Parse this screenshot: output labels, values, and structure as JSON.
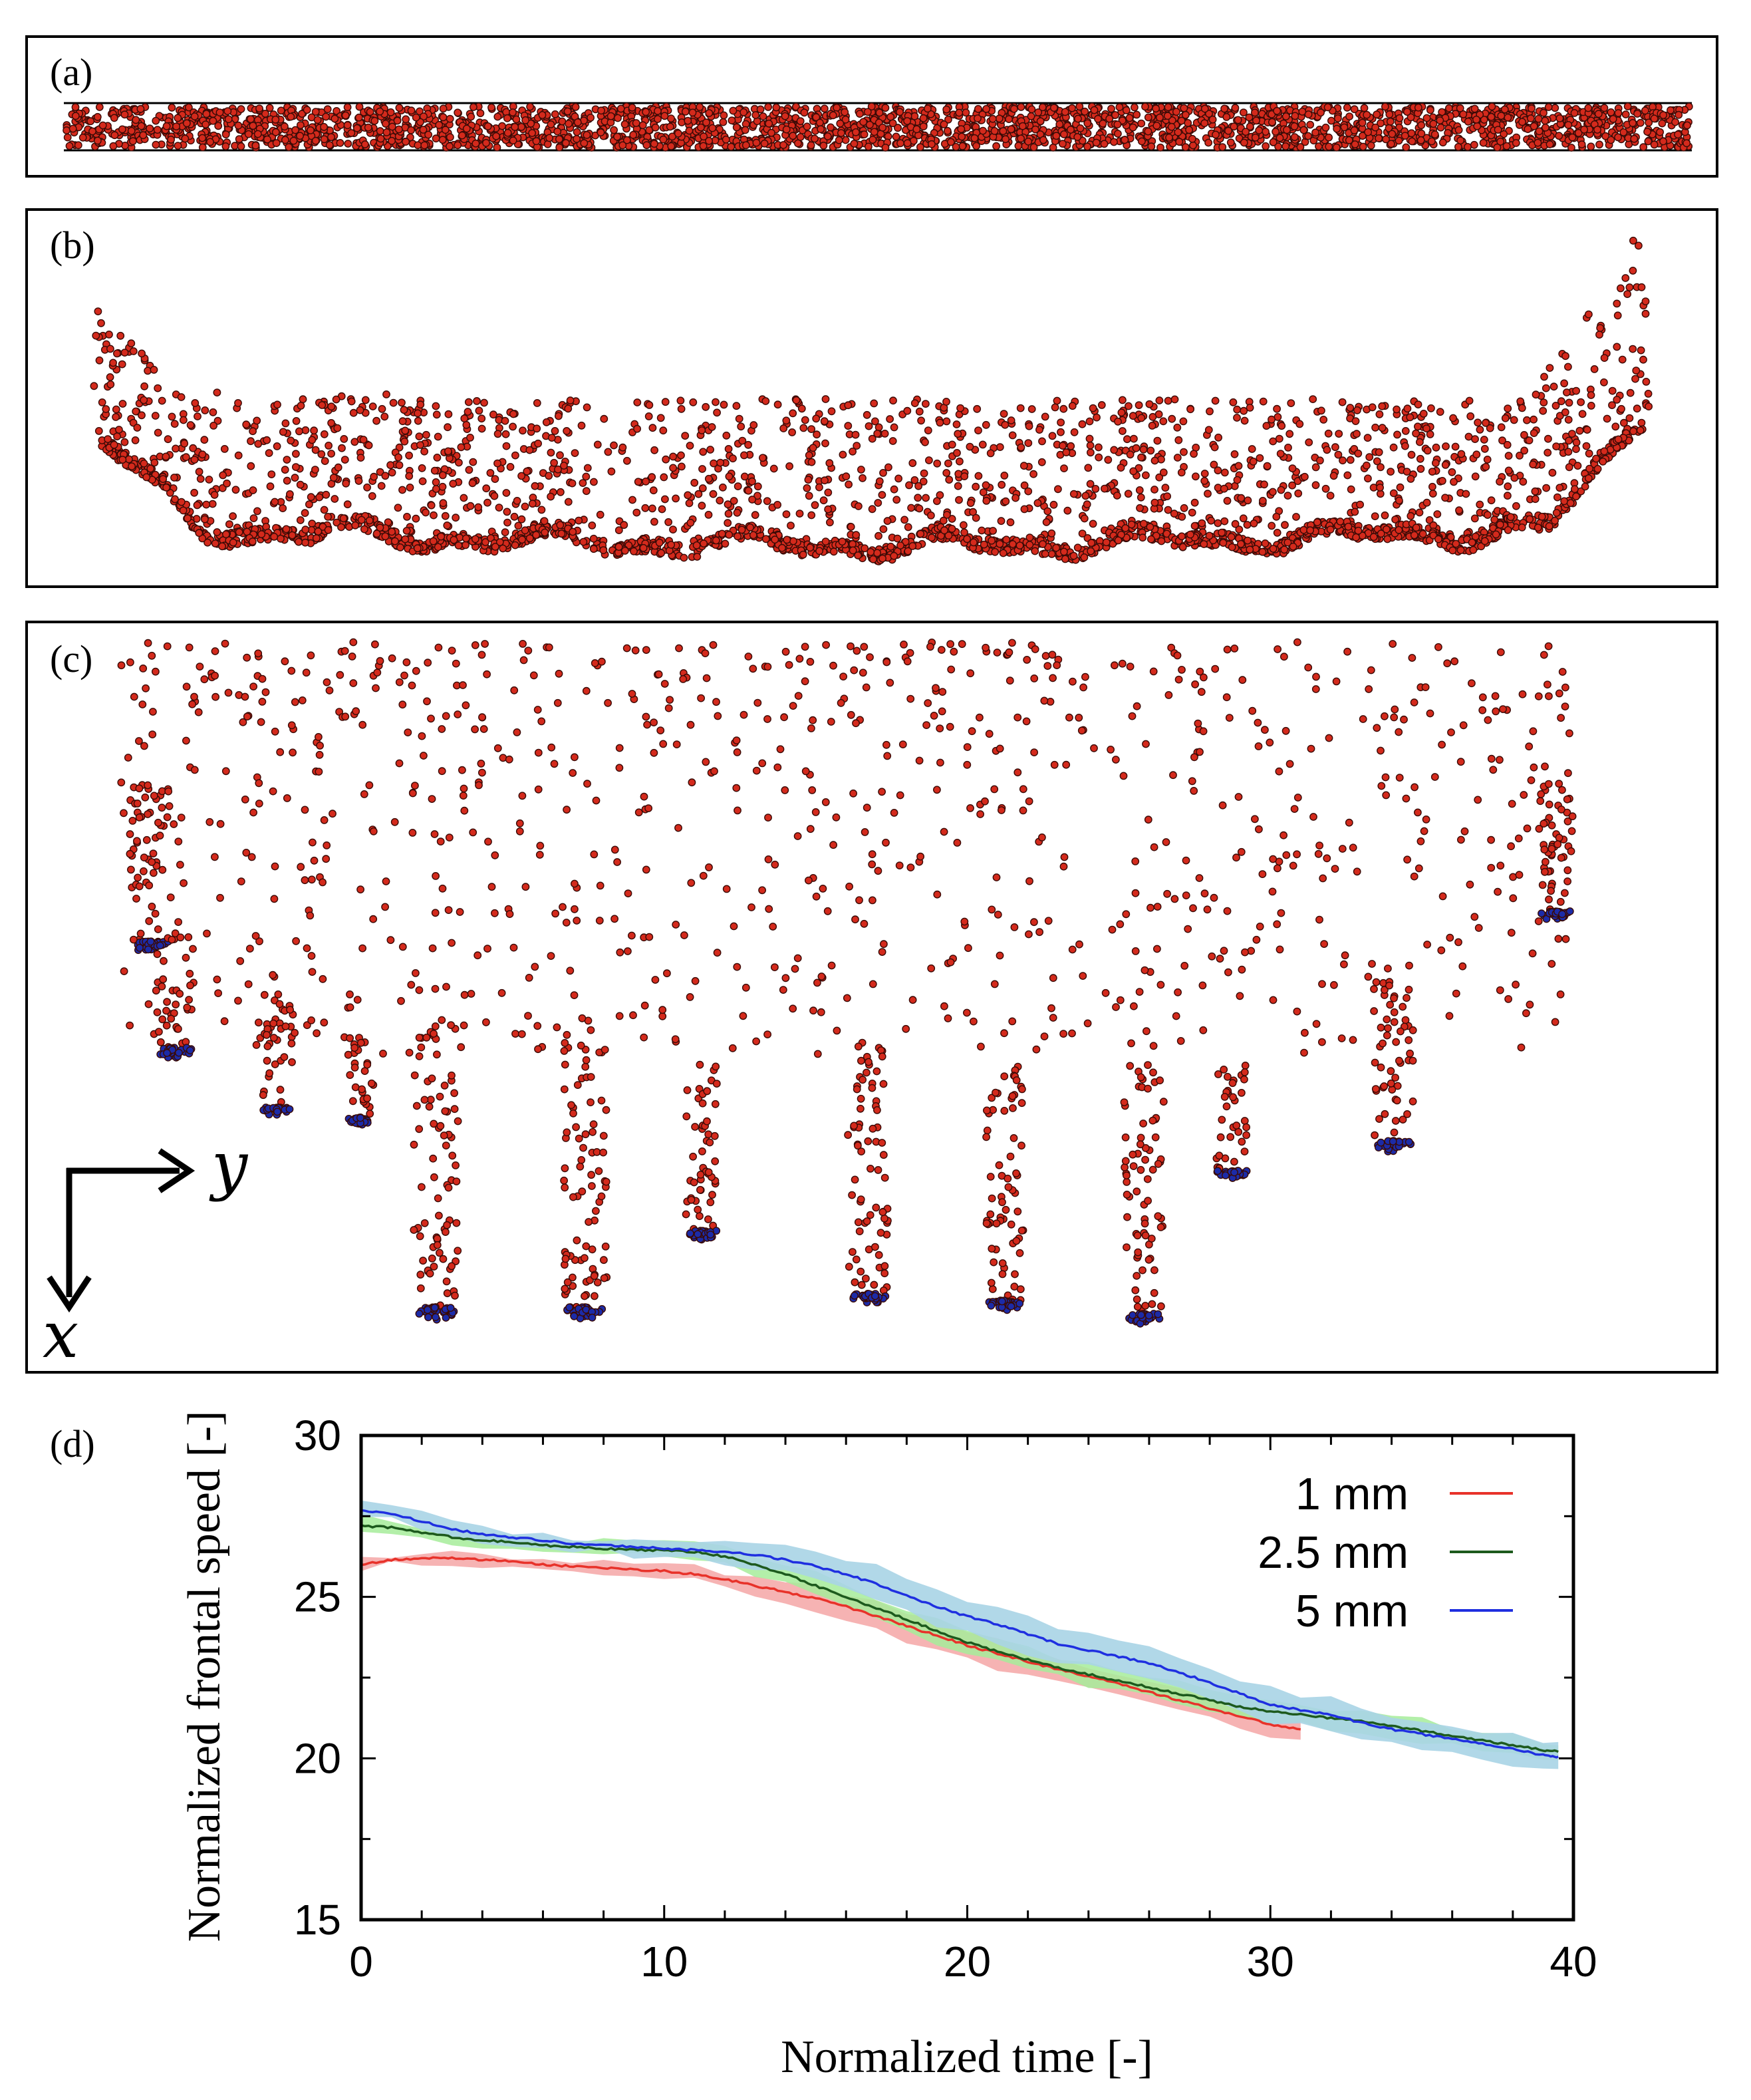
{
  "panels": {
    "a": {
      "label": "(a)",
      "description_colors": {
        "particle": "#d42a1c"
      }
    },
    "b": {
      "label": "(b)"
    },
    "c": {
      "label": "(c)",
      "colors": {
        "particle": "#d42a1c",
        "tip": "#1c2ba8"
      }
    },
    "d": {
      "label": "(d)"
    }
  },
  "axes_indicator": {
    "x_label": "x",
    "y_label": "y"
  },
  "colors": {
    "particle": "#d42a1c",
    "tip_particle": "#1c2ba8",
    "frame": "#000000"
  },
  "chart_data": {
    "type": "line",
    "title": "",
    "xlabel": "Normalized time [-]",
    "ylabel": "Normalized frontal speed [-]",
    "xlim": [
      0,
      40
    ],
    "ylim": [
      15,
      30
    ],
    "xticks": [
      "0",
      "10",
      "20",
      "30",
      "40"
    ],
    "yticks": [
      "15",
      "20",
      "25",
      "30"
    ],
    "legend_position": "top-right",
    "series": [
      {
        "name": "1 mm",
        "color": "#e8322a",
        "band_color": "#f4a6a6",
        "x": [
          0,
          1,
          2,
          3,
          4,
          5,
          6,
          7,
          8,
          9,
          10,
          11,
          12,
          13,
          14,
          15,
          16,
          17,
          18,
          19,
          20,
          21,
          22,
          23,
          24,
          25,
          26,
          27,
          28,
          29,
          30,
          31
        ],
        "y": [
          26.0,
          26.15,
          26.2,
          26.2,
          26.15,
          26.1,
          26.0,
          25.95,
          25.9,
          25.85,
          25.8,
          25.7,
          25.55,
          25.35,
          25.15,
          24.95,
          24.7,
          24.4,
          24.1,
          23.8,
          23.5,
          23.25,
          23.0,
          22.75,
          22.55,
          22.3,
          22.05,
          21.8,
          21.55,
          21.3,
          21.05,
          20.9
        ],
        "band": [
          0.15,
          0.15,
          0.15,
          0.15,
          0.15,
          0.15,
          0.15,
          0.15,
          0.15,
          0.15,
          0.2,
          0.2,
          0.2,
          0.25,
          0.3,
          0.35,
          0.4,
          0.4,
          0.45,
          0.45,
          0.45,
          0.45,
          0.4,
          0.35,
          0.35,
          0.3,
          0.3,
          0.3,
          0.3,
          0.3,
          0.3,
          0.3
        ]
      },
      {
        "name": "2.5 mm",
        "color": "#1d5a1d",
        "band_color": "#a6ec9a",
        "x": [
          0,
          1,
          2,
          3,
          4,
          5,
          6,
          7,
          8,
          9,
          10,
          11,
          12,
          13,
          14,
          15,
          16,
          17,
          18,
          19,
          20,
          21,
          22,
          23,
          24,
          25,
          26,
          27,
          28,
          29,
          30,
          31,
          32,
          33,
          34,
          35,
          36,
          37,
          38,
          39,
          39.5
        ],
        "y": [
          27.2,
          27.15,
          27.0,
          26.85,
          26.75,
          26.7,
          26.6,
          26.55,
          26.5,
          26.45,
          26.45,
          26.4,
          26.25,
          26.0,
          25.7,
          25.35,
          25.0,
          24.65,
          24.3,
          23.95,
          23.6,
          23.3,
          23.05,
          22.8,
          22.6,
          22.4,
          22.2,
          22.0,
          21.8,
          21.6,
          21.45,
          21.35,
          21.25,
          21.15,
          21.0,
          20.85,
          20.7,
          20.55,
          20.4,
          20.25,
          20.2
        ],
        "band": [
          0.25,
          0.2,
          0.2,
          0.2,
          0.2,
          0.2,
          0.2,
          0.2,
          0.2,
          0.2,
          0.2,
          0.25,
          0.25,
          0.3,
          0.3,
          0.35,
          0.35,
          0.35,
          0.35,
          0.35,
          0.35,
          0.35,
          0.3,
          0.3,
          0.3,
          0.3,
          0.3,
          0.3,
          0.3,
          0.3,
          0.3,
          0.3,
          0.3,
          0.3,
          0.3,
          0.3,
          0.3,
          0.3,
          0.3,
          0.3,
          0.3
        ]
      },
      {
        "name": "5 mm",
        "color": "#1f2fe0",
        "band_color": "#a8d4e6",
        "x": [
          0,
          1,
          2,
          3,
          4,
          5,
          6,
          7,
          8,
          9,
          10,
          11,
          12,
          13,
          14,
          15,
          16,
          17,
          18,
          19,
          20,
          21,
          22,
          23,
          24,
          25,
          26,
          27,
          28,
          29,
          30,
          31,
          32,
          33,
          34,
          35,
          36,
          37,
          38,
          39,
          39.5
        ],
        "y": [
          27.7,
          27.55,
          27.35,
          27.1,
          26.95,
          26.85,
          26.75,
          26.65,
          26.6,
          26.55,
          26.5,
          26.45,
          26.4,
          26.3,
          26.15,
          25.95,
          25.7,
          25.4,
          25.05,
          24.7,
          24.4,
          24.15,
          23.85,
          23.55,
          23.35,
          23.15,
          22.95,
          22.65,
          22.35,
          22.0,
          21.65,
          21.5,
          21.35,
          21.1,
          20.9,
          20.75,
          20.6,
          20.45,
          20.3,
          20.1,
          20.05
        ],
        "band": [
          0.2,
          0.2,
          0.2,
          0.2,
          0.2,
          0.2,
          0.2,
          0.2,
          0.2,
          0.25,
          0.25,
          0.3,
          0.3,
          0.35,
          0.4,
          0.45,
          0.5,
          0.5,
          0.55,
          0.55,
          0.55,
          0.55,
          0.55,
          0.55,
          0.55,
          0.55,
          0.5,
          0.5,
          0.5,
          0.5,
          0.5,
          0.45,
          0.45,
          0.45,
          0.45,
          0.45,
          0.45,
          0.45,
          0.45,
          0.45,
          0.45
        ]
      }
    ]
  }
}
